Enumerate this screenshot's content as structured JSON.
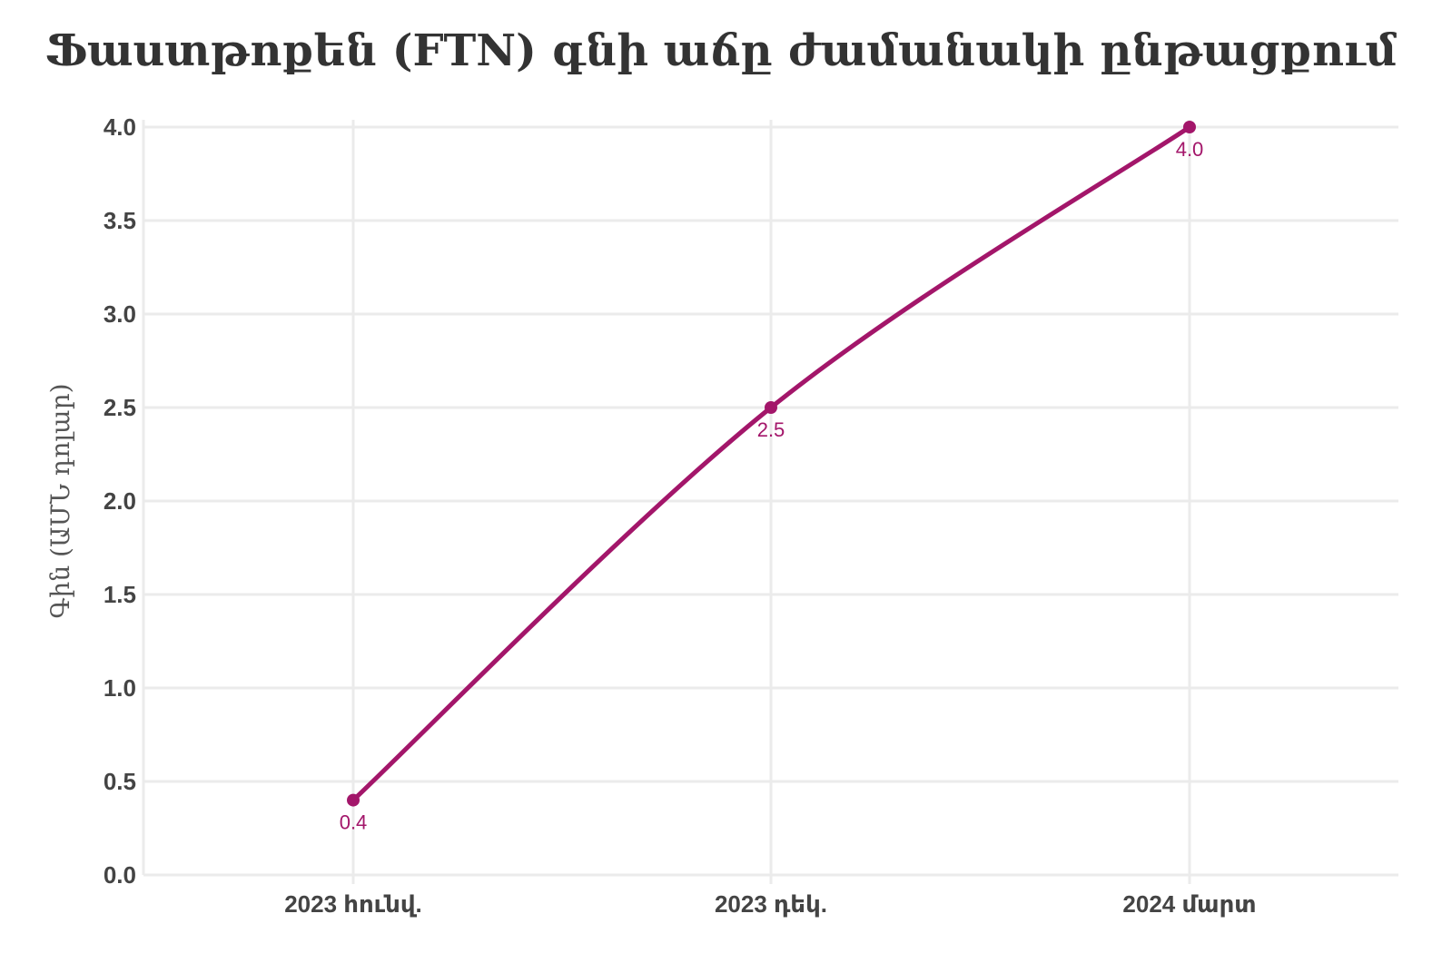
{
  "chart_data": {
    "type": "line",
    "title": "Ֆաստթոքեն (FTN) գնի աճը ժամանակի ընթացքում",
    "xlabel": "",
    "ylabel": "Գին (ԱՄՆ դոլար)",
    "categories": [
      "2023 հունվ.",
      "2023 դեկ.",
      "2024 մարտ"
    ],
    "series": [
      {
        "values": [
          0.4,
          2.5,
          4.0
        ],
        "data_labels": [
          "0.4",
          "2.5",
          "4.0"
        ],
        "color": "#a3166a"
      }
    ],
    "ylim": [
      0,
      4.0
    ],
    "yticks": [
      "0.0",
      "0.5",
      "1.0",
      "1.5",
      "2.0",
      "2.5",
      "3.0",
      "3.5",
      "4.0"
    ],
    "ytick_values": [
      0,
      0.5,
      1.0,
      1.5,
      2.0,
      2.5,
      3.0,
      3.5,
      4.0
    ],
    "grid": true,
    "legend": "none",
    "line_shape": "smooth"
  }
}
